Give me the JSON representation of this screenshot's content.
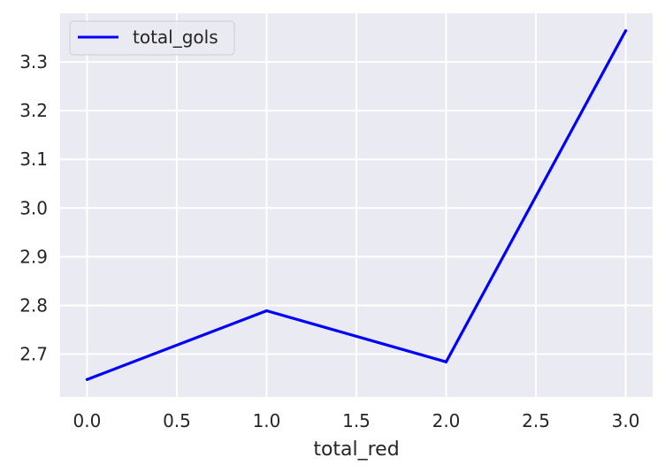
{
  "chart_data": {
    "type": "line",
    "title": "",
    "xlabel": "total_red",
    "ylabel": "",
    "x": [
      0.0,
      1.0,
      2.0,
      3.0
    ],
    "series": [
      {
        "name": "total_gols",
        "values": [
          2.648,
          2.789,
          2.684,
          3.364
        ],
        "color": "#0000ff"
      }
    ],
    "xlim": [
      -0.15,
      3.15
    ],
    "ylim": [
      2.612,
      3.4
    ],
    "xticks": [
      0.0,
      0.5,
      1.0,
      1.5,
      2.0,
      2.5,
      3.0
    ],
    "xtick_labels": [
      "0.0",
      "0.5",
      "1.0",
      "1.5",
      "2.0",
      "2.5",
      "3.0"
    ],
    "yticks": [
      2.7,
      2.8,
      2.9,
      3.0,
      3.1,
      3.2,
      3.3
    ],
    "ytick_labels": [
      "2.7",
      "2.8",
      "2.9",
      "3.0",
      "3.1",
      "3.2",
      "3.3"
    ],
    "grid": true,
    "legend_position": "top-left",
    "background_color": "#eaeaf2",
    "grid_color": "#ffffff",
    "text_color": "#262626"
  }
}
